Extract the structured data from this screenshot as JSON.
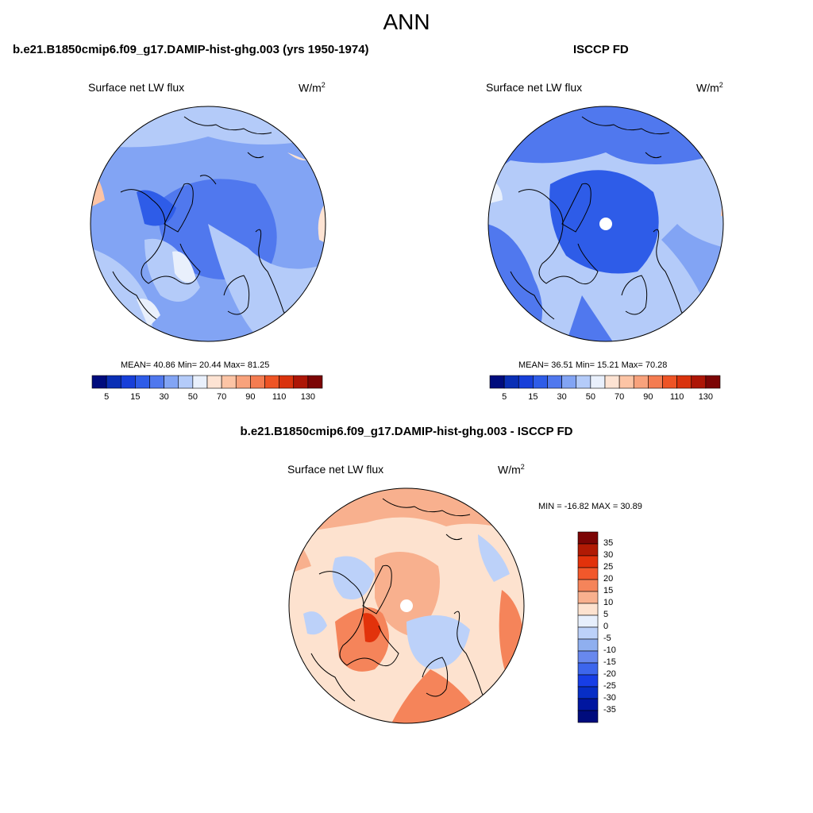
{
  "figure": {
    "season_title": "ANN"
  },
  "panels": [
    {
      "id": "model",
      "title": "b.e21.B1850cmip6.f09_g17.DAMIP-hist-ghg.003 (yrs 1950-1974)",
      "variable": "Surface net LW flux",
      "units": "W/m",
      "units_exp": "2",
      "stats": "MEAN=  40.86  Min=  20.44  Max=  81.25",
      "pole_hole": false
    },
    {
      "id": "obs",
      "title": "ISCCP FD",
      "variable": "Surface net LW flux",
      "units": "W/m",
      "units_exp": "2",
      "stats": "MEAN=  36.51  Min=  15.21  Max=  70.28",
      "pole_hole": true
    },
    {
      "id": "diff",
      "title": "b.e21.B1850cmip6.f09_g17.DAMIP-hist-ghg.003 - ISCCP FD",
      "variable": "Surface net LW flux",
      "units": "W/m",
      "units_exp": "2",
      "stats": "MIN = -16.82 MAX =  30.89",
      "pole_hole": true
    }
  ],
  "colorbar_abs": {
    "colors": [
      "#000c7d",
      "#0a2fb5",
      "#173fd9",
      "#2e5ce8",
      "#5078ee",
      "#82a4f4",
      "#b4cbf9",
      "#e9f0fc",
      "#fde3d3",
      "#fcc4a5",
      "#f8a27c",
      "#f47c51",
      "#ee5425",
      "#d9330d",
      "#ad1606",
      "#7c0505"
    ],
    "tick_labels": [
      "5",
      "15",
      "30",
      "50",
      "70",
      "90",
      "110",
      "130"
    ]
  },
  "colorbar_diff": {
    "colors": [
      "#7c0505",
      "#b11a04",
      "#e2320b",
      "#f2582b",
      "#f5845a",
      "#f8b08e",
      "#fde2cf",
      "#e7effc",
      "#bcd1f9",
      "#8fafef",
      "#6888ee",
      "#3d66ec",
      "#173ee6",
      "#072ec6",
      "#0016a0",
      "#000c7d"
    ],
    "tick_labels": [
      "35",
      "30",
      "25",
      "20",
      "15",
      "10",
      "5",
      "0",
      "-5",
      "-10",
      "-15",
      "-20",
      "-25",
      "-30",
      "-35"
    ]
  }
}
